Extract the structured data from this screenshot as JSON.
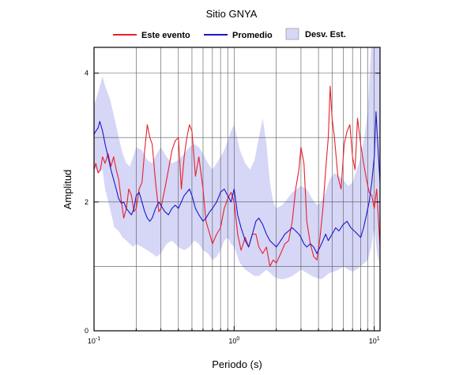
{
  "chart_data": {
    "type": "line",
    "title": "Sitio GNYA",
    "xlabel": "Periodo (s)",
    "ylabel": "Amplitud",
    "x_scale": "log",
    "xlim": [
      0.1,
      11
    ],
    "ylim": [
      0,
      4.4
    ],
    "x_ticks": [
      {
        "value": 0.1,
        "base": "10",
        "exp": "-1"
      },
      {
        "value": 1,
        "base": "10",
        "exp": "0"
      },
      {
        "value": 10,
        "base": "10",
        "exp": "1"
      }
    ],
    "y_ticks": [
      0,
      2,
      4
    ],
    "grid": true,
    "legend_position": "top",
    "series": [
      {
        "name": "Este evento",
        "color": "#e8202a",
        "style": "line",
        "x": [
          0.1,
          0.103,
          0.107,
          0.111,
          0.115,
          0.12,
          0.126,
          0.132,
          0.138,
          0.144,
          0.15,
          0.157,
          0.163,
          0.17,
          0.177,
          0.185,
          0.193,
          0.2,
          0.21,
          0.22,
          0.23,
          0.24,
          0.25,
          0.26,
          0.275,
          0.29,
          0.3,
          0.32,
          0.34,
          0.36,
          0.38,
          0.4,
          0.42,
          0.44,
          0.46,
          0.48,
          0.5,
          0.53,
          0.56,
          0.6,
          0.63,
          0.67,
          0.7,
          0.75,
          0.8,
          0.85,
          0.9,
          0.95,
          1.0,
          1.06,
          1.12,
          1.2,
          1.27,
          1.35,
          1.43,
          1.5,
          1.6,
          1.7,
          1.8,
          1.9,
          2.0,
          2.15,
          2.3,
          2.45,
          2.6,
          2.75,
          2.9,
          3.0,
          3.15,
          3.3,
          3.5,
          3.7,
          3.9,
          4.1,
          4.3,
          4.5,
          4.7,
          4.85,
          5.0,
          5.2,
          5.5,
          5.8,
          6.1,
          6.4,
          6.7,
          7.0,
          7.3,
          7.6,
          8.0,
          8.4,
          8.8,
          9.2,
          9.6,
          10.0,
          10.4,
          10.8,
          11.0
        ],
        "y": [
          2.5,
          2.6,
          2.45,
          2.5,
          2.7,
          2.6,
          2.75,
          2.55,
          2.7,
          2.5,
          2.35,
          2.0,
          1.75,
          1.9,
          2.2,
          2.1,
          1.85,
          1.9,
          2.2,
          2.3,
          2.8,
          3.2,
          3.0,
          2.9,
          2.3,
          1.85,
          1.9,
          2.2,
          2.5,
          2.8,
          2.95,
          3.0,
          2.2,
          2.7,
          3.0,
          3.2,
          3.1,
          2.4,
          2.7,
          2.2,
          1.7,
          1.5,
          1.35,
          1.5,
          1.6,
          1.9,
          2.05,
          2.15,
          2.0,
          1.5,
          1.25,
          1.45,
          1.3,
          1.5,
          1.5,
          1.3,
          1.2,
          1.3,
          1.0,
          1.1,
          1.05,
          1.2,
          1.35,
          1.4,
          1.7,
          2.2,
          2.5,
          2.85,
          2.6,
          1.7,
          1.35,
          1.15,
          1.1,
          1.45,
          1.9,
          2.5,
          3.0,
          3.8,
          3.3,
          3.0,
          2.4,
          2.2,
          2.9,
          3.1,
          3.2,
          2.7,
          2.5,
          3.3,
          2.9,
          2.6,
          2.35,
          2.15,
          2.1,
          1.9,
          2.2,
          1.6,
          1.3
        ]
      },
      {
        "name": "Promedio",
        "color": "#1818c8",
        "style": "line",
        "x": [
          0.1,
          0.103,
          0.107,
          0.11,
          0.115,
          0.12,
          0.126,
          0.132,
          0.138,
          0.144,
          0.15,
          0.157,
          0.163,
          0.17,
          0.177,
          0.185,
          0.193,
          0.2,
          0.21,
          0.22,
          0.23,
          0.24,
          0.25,
          0.26,
          0.275,
          0.29,
          0.3,
          0.32,
          0.34,
          0.36,
          0.38,
          0.4,
          0.42,
          0.44,
          0.46,
          0.48,
          0.5,
          0.53,
          0.56,
          0.6,
          0.63,
          0.67,
          0.7,
          0.75,
          0.8,
          0.85,
          0.9,
          0.95,
          1.0,
          1.06,
          1.12,
          1.2,
          1.27,
          1.35,
          1.43,
          1.5,
          1.6,
          1.7,
          1.8,
          1.9,
          2.0,
          2.15,
          2.3,
          2.45,
          2.6,
          2.75,
          2.9,
          3.0,
          3.15,
          3.3,
          3.5,
          3.7,
          3.9,
          4.1,
          4.3,
          4.5,
          4.7,
          5.0,
          5.3,
          5.6,
          6.0,
          6.4,
          6.8,
          7.2,
          7.6,
          8.0,
          8.4,
          8.8,
          9.2,
          9.6,
          10.0,
          10.3,
          10.6,
          11.0
        ],
        "y": [
          3.05,
          3.1,
          3.15,
          3.25,
          3.1,
          2.9,
          2.7,
          2.5,
          2.35,
          2.2,
          2.05,
          1.98,
          2.0,
          1.9,
          1.85,
          1.8,
          1.9,
          2.1,
          2.15,
          2.0,
          1.85,
          1.75,
          1.7,
          1.75,
          1.9,
          2.0,
          1.95,
          1.85,
          1.8,
          1.9,
          1.95,
          1.9,
          2.0,
          2.1,
          2.15,
          2.2,
          2.1,
          1.9,
          1.8,
          1.7,
          1.75,
          1.85,
          1.9,
          2.0,
          2.15,
          2.2,
          2.1,
          2.0,
          2.2,
          1.8,
          1.6,
          1.4,
          1.3,
          1.5,
          1.7,
          1.75,
          1.65,
          1.5,
          1.4,
          1.35,
          1.3,
          1.4,
          1.5,
          1.55,
          1.6,
          1.55,
          1.5,
          1.45,
          1.35,
          1.3,
          1.35,
          1.3,
          1.2,
          1.3,
          1.4,
          1.5,
          1.4,
          1.5,
          1.6,
          1.55,
          1.65,
          1.7,
          1.6,
          1.55,
          1.5,
          1.45,
          1.6,
          1.8,
          2.0,
          2.3,
          2.7,
          3.4,
          2.9,
          2.3
        ]
      },
      {
        "name": "Desv. Est.",
        "color": "#d6d6f7",
        "style": "band",
        "x": [
          0.1,
          0.107,
          0.115,
          0.12,
          0.13,
          0.14,
          0.15,
          0.16,
          0.17,
          0.18,
          0.19,
          0.2,
          0.22,
          0.24,
          0.26,
          0.28,
          0.3,
          0.33,
          0.36,
          0.4,
          0.44,
          0.48,
          0.52,
          0.56,
          0.6,
          0.65,
          0.7,
          0.75,
          0.8,
          0.85,
          0.9,
          0.95,
          1.0,
          1.1,
          1.2,
          1.3,
          1.4,
          1.5,
          1.6,
          1.7,
          1.8,
          1.9,
          2.0,
          2.2,
          2.4,
          2.6,
          2.8,
          3.0,
          3.3,
          3.6,
          3.9,
          4.2,
          4.5,
          4.8,
          5.2,
          5.6,
          6.0,
          6.5,
          7.0,
          7.5,
          8.0,
          8.5,
          9.0,
          9.5,
          10.0,
          10.5,
          11.0
        ],
        "y_upper": [
          3.5,
          3.7,
          3.95,
          3.8,
          3.6,
          3.3,
          3.0,
          2.75,
          2.6,
          2.55,
          2.7,
          2.85,
          2.8,
          2.65,
          2.6,
          2.75,
          2.85,
          2.7,
          2.6,
          2.65,
          2.75,
          2.85,
          2.9,
          2.85,
          2.75,
          2.6,
          2.5,
          2.6,
          2.7,
          2.8,
          2.95,
          3.1,
          3.2,
          2.8,
          2.6,
          2.5,
          2.65,
          3.0,
          3.3,
          2.9,
          2.3,
          2.0,
          1.9,
          1.95,
          2.05,
          2.15,
          2.2,
          2.25,
          2.2,
          2.05,
          1.95,
          2.0,
          2.15,
          2.35,
          2.45,
          2.4,
          2.35,
          2.25,
          2.3,
          2.5,
          2.7,
          3.0,
          3.4,
          4.4,
          4.4,
          4.4,
          4.4
        ],
        "y_lower": [
          2.55,
          2.45,
          2.5,
          2.2,
          1.9,
          1.6,
          1.55,
          1.45,
          1.4,
          1.35,
          1.3,
          1.35,
          1.3,
          1.25,
          1.2,
          1.15,
          1.2,
          1.35,
          1.4,
          1.3,
          1.25,
          1.3,
          1.4,
          1.35,
          1.25,
          1.2,
          1.1,
          1.15,
          1.25,
          1.4,
          1.45,
          1.35,
          1.3,
          1.05,
          0.95,
          0.9,
          0.85,
          0.85,
          0.9,
          0.95,
          0.9,
          0.85,
          0.82,
          0.8,
          0.82,
          0.85,
          0.9,
          0.95,
          0.9,
          0.85,
          0.82,
          0.8,
          0.85,
          0.9,
          0.92,
          0.95,
          1.0,
          0.95,
          0.92,
          0.95,
          1.0,
          1.05,
          1.1,
          1.3,
          1.6,
          1.2,
          1.0
        ]
      }
    ]
  }
}
